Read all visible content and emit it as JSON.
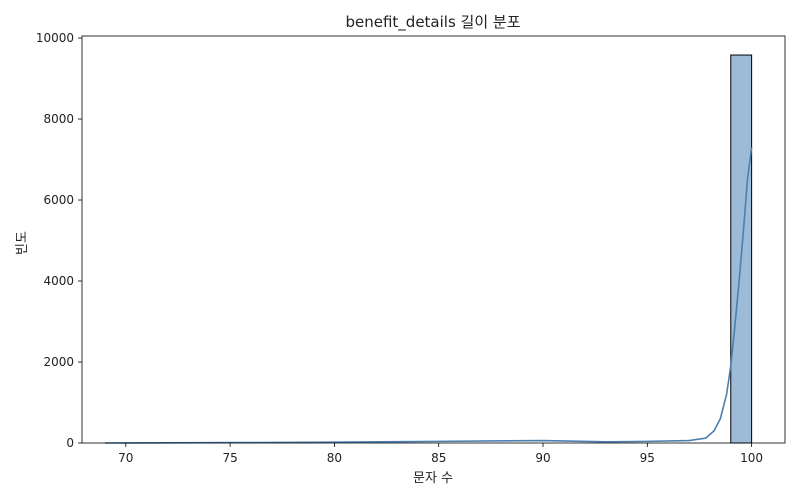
{
  "chart_data": {
    "type": "bar",
    "title": "benefit_details 길이 분포",
    "xlabel": "문자 수",
    "ylabel": "빈도",
    "xlim": [
      67.9,
      101.6
    ],
    "ylim": [
      0,
      10050
    ],
    "x_ticks": [
      70,
      75,
      80,
      85,
      90,
      95,
      100
    ],
    "y_ticks": [
      0,
      2000,
      4000,
      6000,
      8000,
      10000
    ],
    "bins": [
      {
        "x0": 69.0,
        "x1": 70.0,
        "count": 0
      },
      {
        "x0": 70.0,
        "x1": 71.0,
        "count": 0
      },
      {
        "x0": 71.0,
        "x1": 72.0,
        "count": 0
      },
      {
        "x0": 72.0,
        "x1": 73.0,
        "count": 0
      },
      {
        "x0": 73.0,
        "x1": 74.0,
        "count": 0
      },
      {
        "x0": 74.0,
        "x1": 75.0,
        "count": 0
      },
      {
        "x0": 75.0,
        "x1": 76.0,
        "count": 0
      },
      {
        "x0": 76.0,
        "x1": 77.0,
        "count": 0
      },
      {
        "x0": 77.0,
        "x1": 78.0,
        "count": 0
      },
      {
        "x0": 78.0,
        "x1": 79.0,
        "count": 0
      },
      {
        "x0": 79.0,
        "x1": 80.0,
        "count": 0
      },
      {
        "x0": 80.0,
        "x1": 81.0,
        "count": 0
      },
      {
        "x0": 81.0,
        "x1": 82.0,
        "count": 0
      },
      {
        "x0": 82.0,
        "x1": 83.0,
        "count": 0
      },
      {
        "x0": 83.0,
        "x1": 84.0,
        "count": 0
      },
      {
        "x0": 84.0,
        "x1": 85.0,
        "count": 0
      },
      {
        "x0": 85.0,
        "x1": 86.0,
        "count": 0
      },
      {
        "x0": 86.0,
        "x1": 87.0,
        "count": 0
      },
      {
        "x0": 87.0,
        "x1": 88.0,
        "count": 0
      },
      {
        "x0": 88.0,
        "x1": 89.0,
        "count": 0
      },
      {
        "x0": 89.0,
        "x1": 90.0,
        "count": 0
      },
      {
        "x0": 90.0,
        "x1": 91.0,
        "count": 0
      },
      {
        "x0": 91.0,
        "x1": 92.0,
        "count": 0
      },
      {
        "x0": 92.0,
        "x1": 93.0,
        "count": 0
      },
      {
        "x0": 93.0,
        "x1": 94.0,
        "count": 0
      },
      {
        "x0": 94.0,
        "x1": 95.0,
        "count": 0
      },
      {
        "x0": 95.0,
        "x1": 96.0,
        "count": 0
      },
      {
        "x0": 96.0,
        "x1": 97.0,
        "count": 0
      },
      {
        "x0": 97.0,
        "x1": 98.0,
        "count": 0
      },
      {
        "x0": 98.0,
        "x1": 99.0,
        "count": 0
      },
      {
        "x0": 99.0,
        "x1": 100.0,
        "count": 9580
      }
    ],
    "kde": {
      "x": [
        69.0,
        75.0,
        80.0,
        85.0,
        90.0,
        93.0,
        95.0,
        97.0,
        97.8,
        98.2,
        98.5,
        98.8,
        99.0,
        99.2,
        99.4,
        99.6,
        99.8,
        100.0
      ],
      "y": [
        0,
        10,
        20,
        40,
        60,
        30,
        40,
        60,
        120,
        300,
        600,
        1200,
        1900,
        2900,
        4000,
        5200,
        6500,
        7300
      ]
    },
    "bar_color": "#9dbbd6",
    "bar_edge_color": "#000000",
    "kde_color": "#4a7fb0",
    "grid": false,
    "legend": "none"
  }
}
